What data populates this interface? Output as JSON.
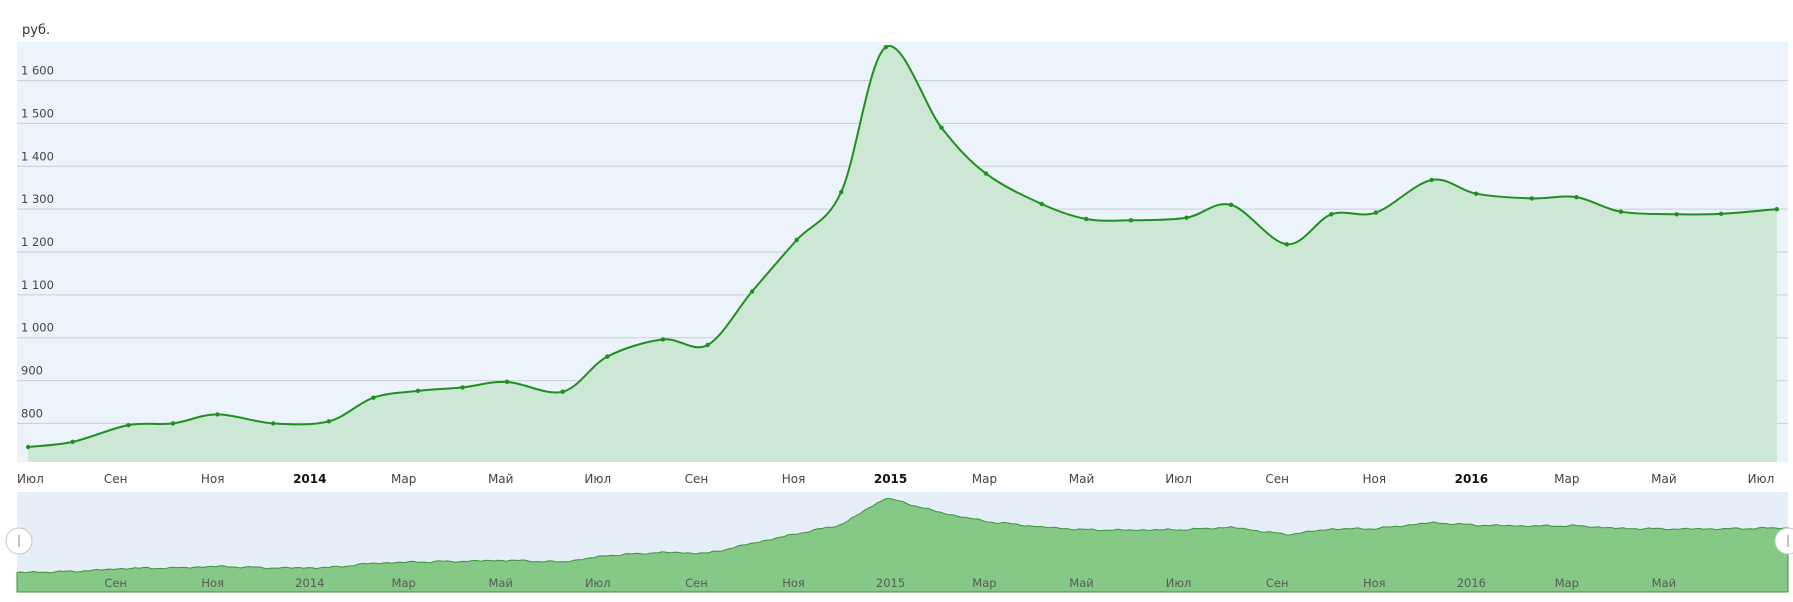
{
  "chart_data": {
    "type": "area",
    "y_unit": "руб.",
    "title": "",
    "xlabel": "",
    "ylabel": "",
    "x_range": [
      "2013-07-01",
      "2016-07-18"
    ],
    "ylim": [
      710,
      1690
    ],
    "y_ticks": [
      {
        "value": 800,
        "label": "800"
      },
      {
        "value": 900,
        "label": "900"
      },
      {
        "value": 1000,
        "label": "1 000"
      },
      {
        "value": 1100,
        "label": "1 100"
      },
      {
        "value": 1200,
        "label": "1 200"
      },
      {
        "value": 1300,
        "label": "1 300"
      },
      {
        "value": 1400,
        "label": "1 400"
      },
      {
        "value": 1500,
        "label": "1 500"
      },
      {
        "value": 1600,
        "label": "1 600"
      }
    ],
    "x_ticks": [
      {
        "date": "2013-07-01",
        "label": "Июл",
        "major": false
      },
      {
        "date": "2013-09-01",
        "label": "Сен",
        "major": false
      },
      {
        "date": "2013-11-01",
        "label": "Ноя",
        "major": false
      },
      {
        "date": "2014-01-01",
        "label": "2014",
        "major": true
      },
      {
        "date": "2014-03-01",
        "label": "Мар",
        "major": false
      },
      {
        "date": "2014-05-01",
        "label": "Май",
        "major": false
      },
      {
        "date": "2014-07-01",
        "label": "Июл",
        "major": false
      },
      {
        "date": "2014-09-01",
        "label": "Сен",
        "major": false
      },
      {
        "date": "2014-11-01",
        "label": "Ноя",
        "major": false
      },
      {
        "date": "2015-01-01",
        "label": "2015",
        "major": true
      },
      {
        "date": "2015-03-01",
        "label": "Мар",
        "major": false
      },
      {
        "date": "2015-05-01",
        "label": "Май",
        "major": false
      },
      {
        "date": "2015-07-01",
        "label": "Июл",
        "major": false
      },
      {
        "date": "2015-09-01",
        "label": "Сен",
        "major": false
      },
      {
        "date": "2015-11-01",
        "label": "Ноя",
        "major": false
      },
      {
        "date": "2016-01-01",
        "label": "2016",
        "major": true
      },
      {
        "date": "2016-03-01",
        "label": "Мар",
        "major": false
      },
      {
        "date": "2016-05-01",
        "label": "Май",
        "major": false
      },
      {
        "date": "2016-07-01",
        "label": "Июл",
        "major": false
      }
    ],
    "grid": true,
    "colors": {
      "plot_background": "#ecf3fb",
      "line": "#1f8f1f",
      "fill": "#cce8d4",
      "navigator_fill": "#86c886",
      "navigator_line": "#3c943c",
      "navigator_background": "#e6eef8",
      "grid": "#c5cfd9"
    },
    "series": [
      {
        "points": [
          {
            "x": "2013-07-08",
            "y": 745
          },
          {
            "x": "2013-08-05",
            "y": 757
          },
          {
            "x": "2013-09-09",
            "y": 796
          },
          {
            "x": "2013-10-07",
            "y": 800
          },
          {
            "x": "2013-11-04",
            "y": 821
          },
          {
            "x": "2013-12-09",
            "y": 800
          },
          {
            "x": "2014-01-13",
            "y": 805
          },
          {
            "x": "2014-02-10",
            "y": 860
          },
          {
            "x": "2014-03-10",
            "y": 876
          },
          {
            "x": "2014-04-07",
            "y": 884
          },
          {
            "x": "2014-05-05",
            "y": 897
          },
          {
            "x": "2014-06-09",
            "y": 874
          },
          {
            "x": "2014-07-07",
            "y": 956
          },
          {
            "x": "2014-08-11",
            "y": 996
          },
          {
            "x": "2014-09-08",
            "y": 983
          },
          {
            "x": "2014-10-06",
            "y": 1108
          },
          {
            "x": "2014-11-03",
            "y": 1228
          },
          {
            "x": "2014-12-01",
            "y": 1340
          },
          {
            "x": "2014-12-29",
            "y": 1678
          },
          {
            "x": "2015-02-02",
            "y": 1490
          },
          {
            "x": "2015-03-02",
            "y": 1383
          },
          {
            "x": "2015-04-06",
            "y": 1312
          },
          {
            "x": "2015-05-04",
            "y": 1277
          },
          {
            "x": "2015-06-01",
            "y": 1274
          },
          {
            "x": "2015-07-06",
            "y": 1280
          },
          {
            "x": "2015-08-03",
            "y": 1310
          },
          {
            "x": "2015-09-07",
            "y": 1218
          },
          {
            "x": "2015-10-05",
            "y": 1288
          },
          {
            "x": "2015-11-02",
            "y": 1292
          },
          {
            "x": "2015-12-07",
            "y": 1368
          },
          {
            "x": "2016-01-04",
            "y": 1336
          },
          {
            "x": "2016-02-08",
            "y": 1325
          },
          {
            "x": "2016-03-07",
            "y": 1328
          },
          {
            "x": "2016-04-04",
            "y": 1294
          },
          {
            "x": "2016-05-09",
            "y": 1288
          },
          {
            "x": "2016-06-06",
            "y": 1289
          },
          {
            "x": "2016-07-11",
            "y": 1300
          }
        ]
      }
    ],
    "navigator": {
      "x_ticks": [
        {
          "date": "2013-09-01",
          "label": "Сен"
        },
        {
          "date": "2013-11-01",
          "label": "Ноя"
        },
        {
          "date": "2014-01-01",
          "label": "2014"
        },
        {
          "date": "2014-03-01",
          "label": "Мар"
        },
        {
          "date": "2014-05-01",
          "label": "Май"
        },
        {
          "date": "2014-07-01",
          "label": "Июл"
        },
        {
          "date": "2014-09-01",
          "label": "Сен"
        },
        {
          "date": "2014-11-01",
          "label": "Ноя"
        },
        {
          "date": "2015-01-01",
          "label": "2015"
        },
        {
          "date": "2015-03-01",
          "label": "Мар"
        },
        {
          "date": "2015-05-01",
          "label": "Май"
        },
        {
          "date": "2015-07-01",
          "label": "Июл"
        },
        {
          "date": "2015-09-01",
          "label": "Сен"
        },
        {
          "date": "2015-11-01",
          "label": "Ноя"
        },
        {
          "date": "2016-01-01",
          "label": "2016"
        },
        {
          "date": "2016-03-01",
          "label": "Мар"
        },
        {
          "date": "2016-05-01",
          "label": "Май"
        }
      ]
    }
  }
}
